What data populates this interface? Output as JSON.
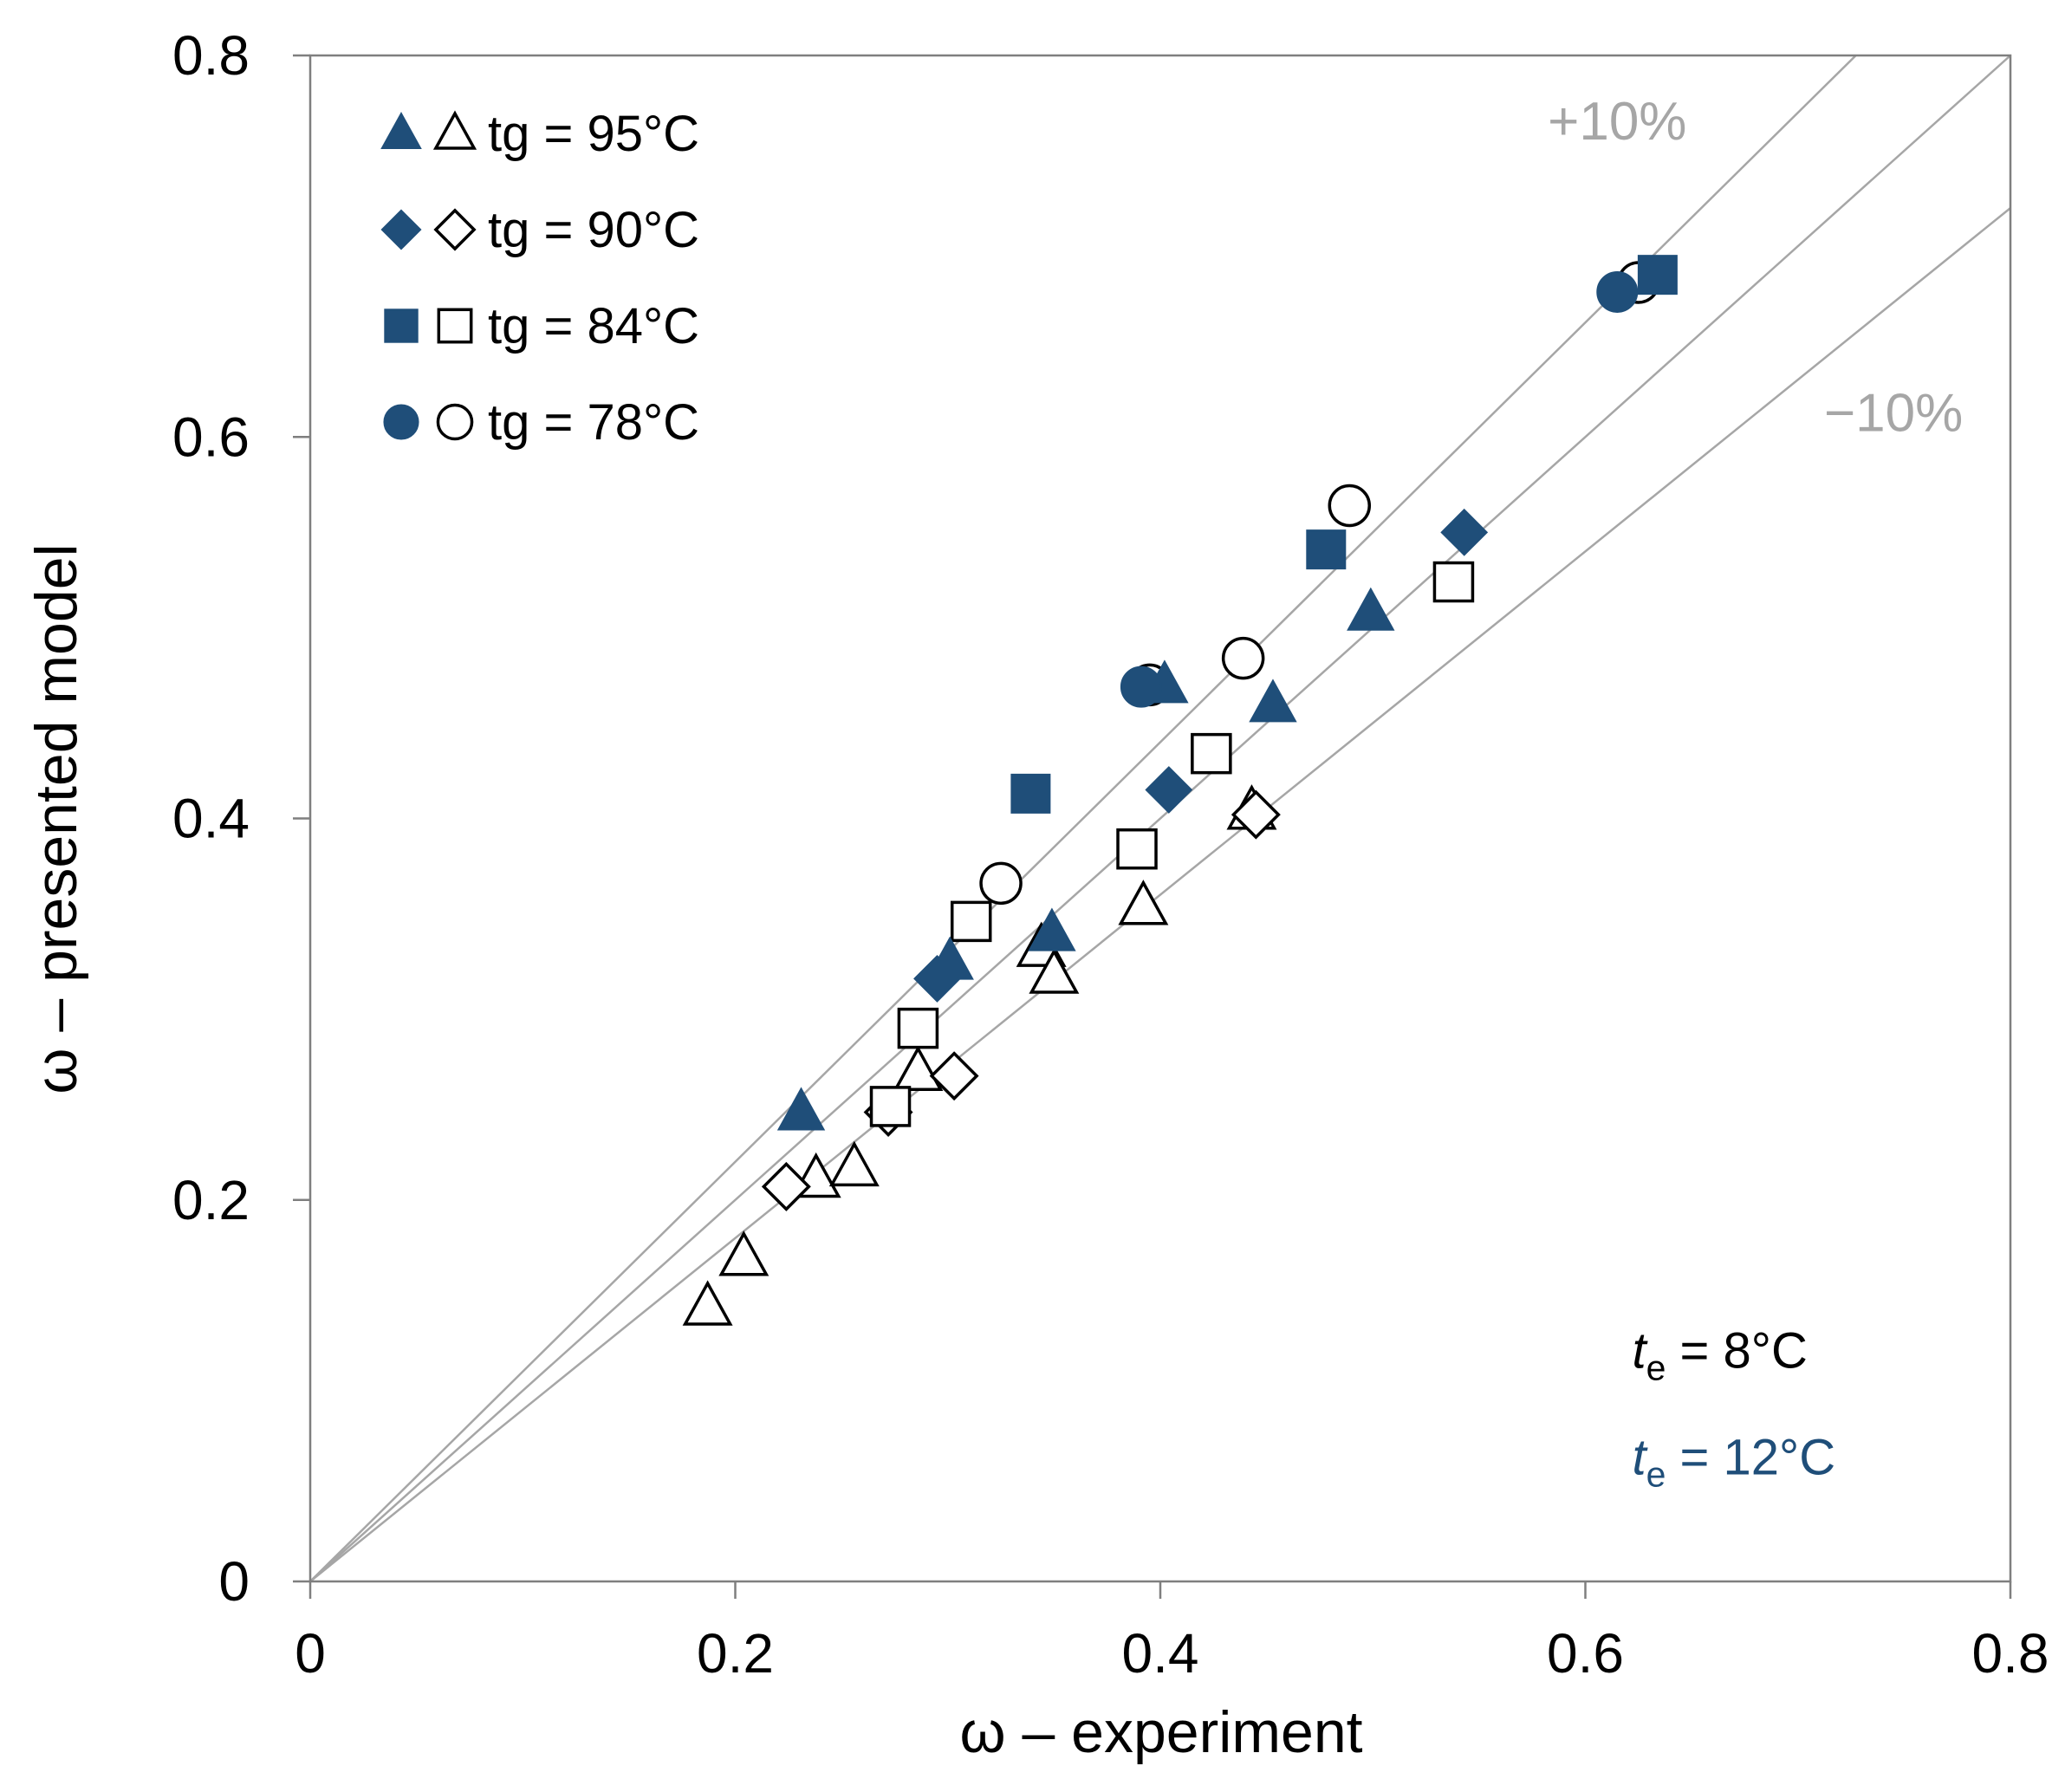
{
  "chart_data": {
    "type": "scatter",
    "title": "",
    "xlabel": "ω – experiment",
    "ylabel": "ω – presented model",
    "xlim": [
      0,
      0.8
    ],
    "ylim": [
      0,
      0.8
    ],
    "grid": false,
    "legend_position": "top-left-inside",
    "ticks": {
      "values": [
        0,
        0.2,
        0.4,
        0.6,
        0.8
      ],
      "labels": [
        "0",
        "0.2",
        "0.4",
        "0.6",
        "0.8"
      ]
    },
    "colors": {
      "marker_fill": "#1F4E79",
      "open_fill": "#FFFFFF",
      "open_stroke": "#000000",
      "ref_line": "#A6A6A6",
      "border": "#7F7F7F",
      "text": "#000000",
      "gray_text": "#A6A6A6",
      "blue_text": "#1F4E79"
    },
    "reference_lines": [
      {
        "slope": 1.0,
        "label": ""
      },
      {
        "slope": 1.1,
        "label": "+10%"
      },
      {
        "slope": 0.9,
        "label": "−10%"
      }
    ],
    "legend": [
      {
        "shape": "triangle",
        "label": "tg = 95°C"
      },
      {
        "shape": "diamond",
        "label": "tg = 90°C"
      },
      {
        "shape": "square",
        "label": "tg = 84°C"
      },
      {
        "shape": "circle",
        "label": "tg = 78°C"
      }
    ],
    "series": [
      {
        "name": "tg = 95°C, te = 8°C",
        "shape": "triangle",
        "style": "open",
        "points": [
          [
            0.187,
            0.144
          ],
          [
            0.204,
            0.17
          ],
          [
            0.238,
            0.211
          ],
          [
            0.256,
            0.217
          ],
          [
            0.286,
            0.267
          ],
          [
            0.344,
            0.332
          ],
          [
            0.35,
            0.318
          ],
          [
            0.392,
            0.354
          ],
          [
            0.443,
            0.404
          ]
        ]
      },
      {
        "name": "tg = 90°C, te = 8°C",
        "shape": "diamond",
        "style": "open",
        "points": [
          [
            0.224,
            0.207
          ],
          [
            0.272,
            0.246
          ],
          [
            0.303,
            0.265
          ],
          [
            0.445,
            0.402
          ]
        ]
      },
      {
        "name": "tg = 84°C, te = 8°C",
        "shape": "square",
        "style": "open",
        "points": [
          [
            0.273,
            0.249
          ],
          [
            0.286,
            0.29
          ],
          [
            0.311,
            0.346
          ],
          [
            0.389,
            0.384
          ],
          [
            0.424,
            0.434
          ],
          [
            0.538,
            0.524
          ]
        ]
      },
      {
        "name": "tg = 78°C, te = 8°C",
        "shape": "circle",
        "style": "open",
        "points": [
          [
            0.325,
            0.366
          ],
          [
            0.395,
            0.47
          ],
          [
            0.439,
            0.484
          ],
          [
            0.489,
            0.564
          ],
          [
            0.625,
            0.681
          ]
        ]
      },
      {
        "name": "tg = 95°C, te = 12°C",
        "shape": "triangle",
        "style": "filled",
        "points": [
          [
            0.231,
            0.246
          ],
          [
            0.301,
            0.325
          ],
          [
            0.349,
            0.34
          ],
          [
            0.402,
            0.47
          ],
          [
            0.453,
            0.46
          ],
          [
            0.499,
            0.508
          ]
        ]
      },
      {
        "name": "tg = 90°C, te = 12°C",
        "shape": "diamond",
        "style": "filled",
        "points": [
          [
            0.295,
            0.316
          ],
          [
            0.404,
            0.415
          ],
          [
            0.543,
            0.55
          ]
        ]
      },
      {
        "name": "tg = 78°C, te = 12°C",
        "shape": "circle",
        "style": "filled",
        "points": [
          [
            0.391,
            0.469
          ],
          [
            0.615,
            0.676
          ]
        ]
      },
      {
        "name": "tg = 84°C, te = 12°C",
        "shape": "square",
        "style": "filled",
        "points": [
          [
            0.339,
            0.413
          ],
          [
            0.478,
            0.541
          ],
          [
            0.634,
            0.685
          ]
        ]
      }
    ],
    "annotations": [
      {
        "x": 0.615,
        "y": 0.756,
        "text": "+10%",
        "color": "#A6A6A6",
        "anchor": "middle",
        "size": 62
      },
      {
        "x": 0.745,
        "y": 0.603,
        "text": "−10%",
        "color": "#A6A6A6",
        "anchor": "middle",
        "size": 62
      },
      {
        "x": 0.622,
        "y": 0.112,
        "color": "#000000",
        "anchor": "start",
        "size": 58,
        "parts": [
          {
            "text": "t",
            "italic": true
          },
          {
            "text": "e",
            "sub": true
          },
          {
            "text": " = 8°C"
          }
        ]
      },
      {
        "x": 0.622,
        "y": 0.056,
        "color": "#1F4E79",
        "anchor": "start",
        "size": 58,
        "parts": [
          {
            "text": "t",
            "italic": true
          },
          {
            "text": "e",
            "sub": true
          },
          {
            "text": " = 12°C"
          }
        ]
      }
    ]
  }
}
